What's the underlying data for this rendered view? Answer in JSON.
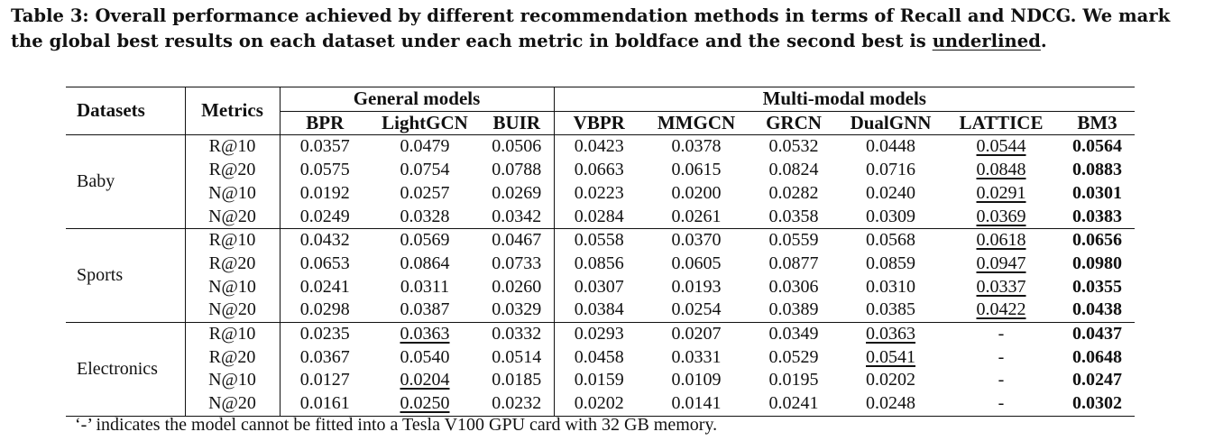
{
  "caption": {
    "text_before": "Table 3: Overall performance achieved by different recommendation methods in terms of Recall and NDCG. We mark the global best results on each dataset under each metric in boldface and the second best is ",
    "underlined_word": "underlined",
    "text_after": "."
  },
  "table": {
    "datasets_header": "Datasets",
    "metrics_header": "Metrics",
    "group_general": "General models",
    "group_multimodal": "Multi-modal models",
    "methods": [
      "BPR",
      "LightGCN",
      "BUIR",
      "VBPR",
      "MMGCN",
      "GRCN",
      "DualGNN",
      "LATTICE",
      "BM3"
    ],
    "blocks": [
      {
        "dataset": "Baby",
        "rows": [
          {
            "metric": "R@10",
            "values": [
              "0.0357",
              "0.0479",
              "0.0506",
              "0.0423",
              "0.0378",
              "0.0532",
              "0.0448",
              "0.0544",
              "0.0564"
            ],
            "best": 8,
            "second": [
              7
            ]
          },
          {
            "metric": "R@20",
            "values": [
              "0.0575",
              "0.0754",
              "0.0788",
              "0.0663",
              "0.0615",
              "0.0824",
              "0.0716",
              "0.0848",
              "0.0883"
            ],
            "best": 8,
            "second": [
              7
            ]
          },
          {
            "metric": "N@10",
            "values": [
              "0.0192",
              "0.0257",
              "0.0269",
              "0.0223",
              "0.0200",
              "0.0282",
              "0.0240",
              "0.0291",
              "0.0301"
            ],
            "best": 8,
            "second": [
              7
            ]
          },
          {
            "metric": "N@20",
            "values": [
              "0.0249",
              "0.0328",
              "0.0342",
              "0.0284",
              "0.0261",
              "0.0358",
              "0.0309",
              "0.0369",
              "0.0383"
            ],
            "best": 8,
            "second": [
              7
            ]
          }
        ]
      },
      {
        "dataset": "Sports",
        "rows": [
          {
            "metric": "R@10",
            "values": [
              "0.0432",
              "0.0569",
              "0.0467",
              "0.0558",
              "0.0370",
              "0.0559",
              "0.0568",
              "0.0618",
              "0.0656"
            ],
            "best": 8,
            "second": [
              7
            ]
          },
          {
            "metric": "R@20",
            "values": [
              "0.0653",
              "0.0864",
              "0.0733",
              "0.0856",
              "0.0605",
              "0.0877",
              "0.0859",
              "0.0947",
              "0.0980"
            ],
            "best": 8,
            "second": [
              7
            ]
          },
          {
            "metric": "N@10",
            "values": [
              "0.0241",
              "0.0311",
              "0.0260",
              "0.0307",
              "0.0193",
              "0.0306",
              "0.0310",
              "0.0337",
              "0.0355"
            ],
            "best": 8,
            "second": [
              7
            ]
          },
          {
            "metric": "N@20",
            "values": [
              "0.0298",
              "0.0387",
              "0.0329",
              "0.0384",
              "0.0254",
              "0.0389",
              "0.0385",
              "0.0422",
              "0.0438"
            ],
            "best": 8,
            "second": [
              7
            ]
          }
        ]
      },
      {
        "dataset": "Electronics",
        "rows": [
          {
            "metric": "R@10",
            "values": [
              "0.0235",
              "0.0363",
              "0.0332",
              "0.0293",
              "0.0207",
              "0.0349",
              "0.0363",
              "-",
              "0.0437"
            ],
            "best": 8,
            "second": [
              1,
              6
            ]
          },
          {
            "metric": "R@20",
            "values": [
              "0.0367",
              "0.0540",
              "0.0514",
              "0.0458",
              "0.0331",
              "0.0529",
              "0.0541",
              "-",
              "0.0648"
            ],
            "best": 8,
            "second": [
              6
            ]
          },
          {
            "metric": "N@10",
            "values": [
              "0.0127",
              "0.0204",
              "0.0185",
              "0.0159",
              "0.0109",
              "0.0195",
              "0.0202",
              "-",
              "0.0247"
            ],
            "best": 8,
            "second": [
              1
            ]
          },
          {
            "metric": "N@20",
            "values": [
              "0.0161",
              "0.0250",
              "0.0232",
              "0.0202",
              "0.0141",
              "0.0241",
              "0.0248",
              "-",
              "0.0302"
            ],
            "best": 8,
            "second": [
              1
            ]
          }
        ]
      }
    ]
  },
  "footnote": "‘-’ indicates the model cannot be fitted into a Tesla V100 GPU card with 32 GB memory."
}
